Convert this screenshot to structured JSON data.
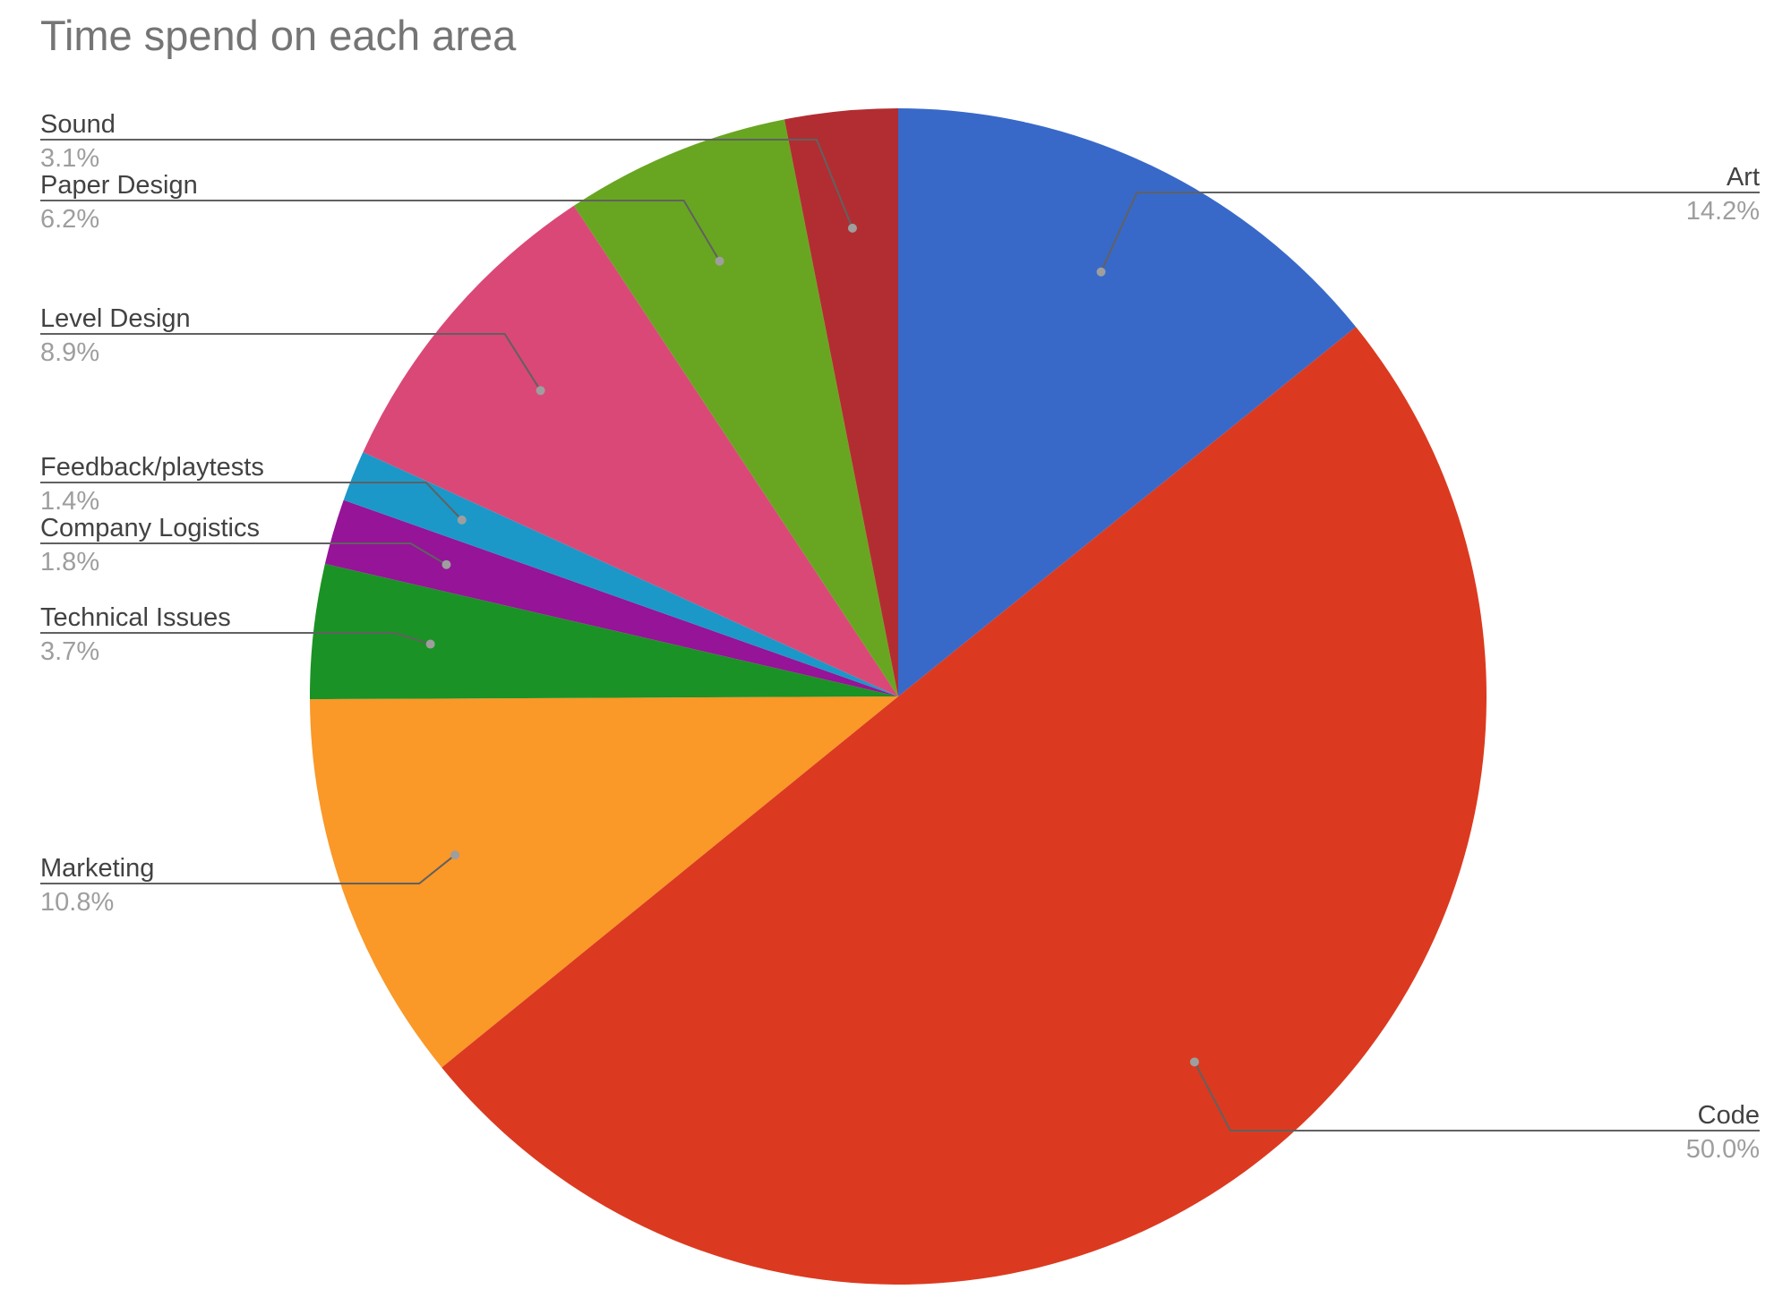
{
  "chart_data": {
    "type": "pie",
    "title": "Time spend on each area",
    "slices": [
      {
        "label": "Art",
        "value": 14.2,
        "display": "14.2%",
        "color": "#3869c9"
      },
      {
        "label": "Code",
        "value": 50.0,
        "display": "50.0%",
        "color": "#db3a20"
      },
      {
        "label": "Marketing",
        "value": 10.8,
        "display": "10.8%",
        "color": "#fa9828"
      },
      {
        "label": "Technical Issues",
        "value": 3.7,
        "display": "3.7%",
        "color": "#1b9225"
      },
      {
        "label": "Company Logistics",
        "value": 1.8,
        "display": "1.8%",
        "color": "#951497"
      },
      {
        "label": "Feedback/playtests",
        "value": 1.4,
        "display": "1.4%",
        "color": "#1b98c8"
      },
      {
        "label": "Level Design",
        "value": 8.9,
        "display": "8.9%",
        "color": "#da4878"
      },
      {
        "label": "Paper Design",
        "value": 6.2,
        "display": "6.2%",
        "color": "#68a621"
      },
      {
        "label": "Sound",
        "value": 3.1,
        "display": "3.1%",
        "color": "#b22d31"
      }
    ],
    "legend": "none",
    "start_angle": "12 o'clock, clockwise"
  }
}
